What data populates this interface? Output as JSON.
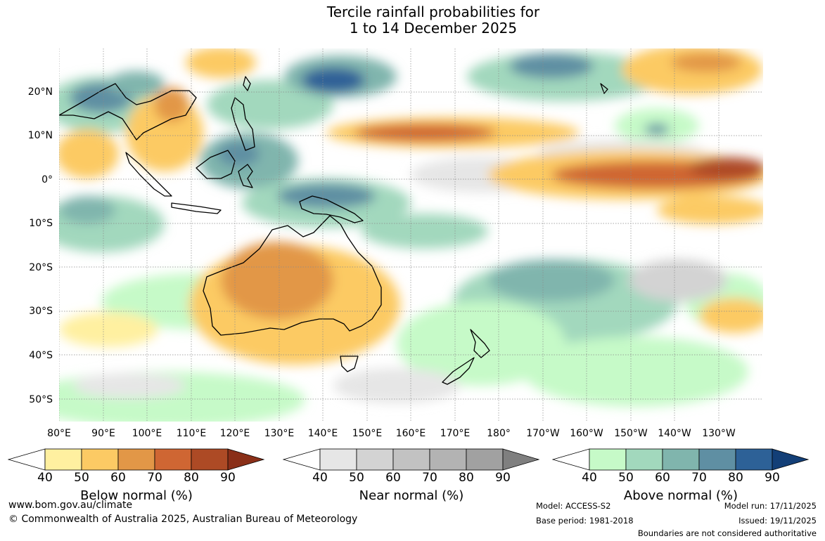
{
  "title": {
    "line1": "Tercile rainfall probabilities for",
    "line2": "1 to 14 December 2025"
  },
  "lat_labels": [
    "20°N",
    "10°N",
    "0°",
    "10°S",
    "20°S",
    "30°S",
    "40°S",
    "50°S"
  ],
  "lon_labels": [
    "80°E",
    "90°E",
    "100°E",
    "110°E",
    "120°E",
    "130°E",
    "140°E",
    "150°E",
    "160°E",
    "170°E",
    "180°",
    "170°W",
    "160°W",
    "150°W",
    "140°W",
    "130°W"
  ],
  "legend_ticks": [
    "40",
    "50",
    "60",
    "70",
    "80",
    "90"
  ],
  "legends": {
    "below": {
      "title": "Below normal (%)",
      "colors": [
        "#fff0a0",
        "#fcca64",
        "#e29747",
        "#cf6633",
        "#ad4a25",
        "#8a2f18"
      ]
    },
    "near": {
      "title": "Near normal (%)",
      "colors": [
        "#e6e6e6",
        "#d3d3d3",
        "#c2c2c2",
        "#b3b3b3",
        "#a1a1a1",
        "#7f7f7f"
      ]
    },
    "above": {
      "title": "Above normal (%)",
      "colors": [
        "#c6fac8",
        "#a2d8bd",
        "#80b5ad",
        "#5f8fa3",
        "#2d6197",
        "#133f77"
      ]
    }
  },
  "footer": {
    "url": "www.bom.gov.au/climate",
    "copyright": "© Commonwealth of Australia 2025, Australian Bureau of Meteorology",
    "model": "Model: ACCESS-S2",
    "base_period": "Base period: 1981-2018",
    "model_run": "Model run: 17/11/2025",
    "issued": "Issued: 19/11/2025",
    "disclaimer": "Boundaries are not considered authoritative"
  }
}
